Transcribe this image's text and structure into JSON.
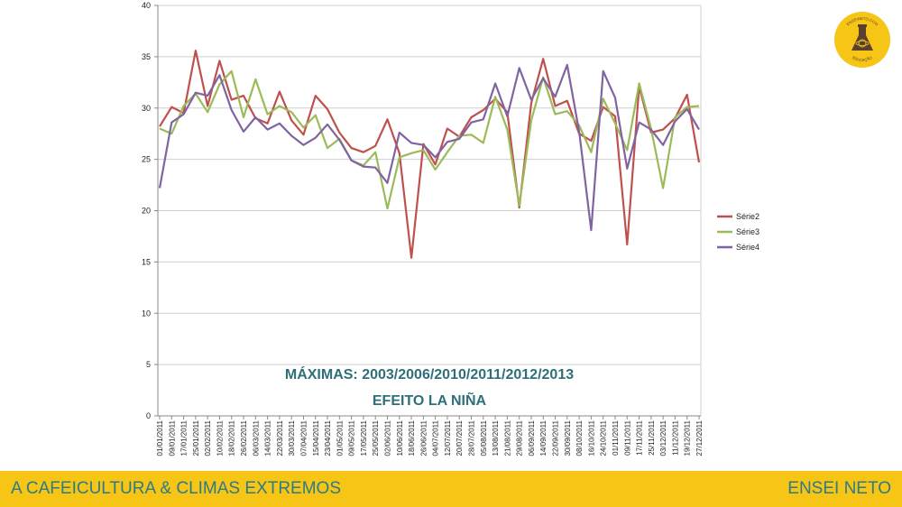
{
  "chart_data": {
    "type": "line",
    "title": "",
    "xlabel": "",
    "ylabel": "",
    "ylim": [
      0,
      40
    ],
    "yticks": [
      0,
      5,
      10,
      15,
      20,
      25,
      30,
      35,
      40
    ],
    "grid": true,
    "legend": "right",
    "x": [
      "01/01/2011",
      "09/01/2011",
      "17/01/2011",
      "25/01/2011",
      "02/02/2011",
      "10/02/2011",
      "18/02/2011",
      "26/02/2011",
      "06/03/2011",
      "14/03/2011",
      "22/03/2011",
      "30/03/2011",
      "07/04/2011",
      "15/04/2011",
      "23/04/2011",
      "01/05/2011",
      "09/05/2011",
      "17/05/2011",
      "25/05/2011",
      "02/06/2011",
      "10/06/2011",
      "18/06/2011",
      "26/06/2011",
      "04/07/2011",
      "12/07/2011",
      "20/07/2011",
      "28/07/2011",
      "05/08/2011",
      "13/08/2011",
      "21/08/2011",
      "29/08/2011",
      "06/09/2011",
      "14/09/2011",
      "22/09/2011",
      "30/09/2011",
      "08/10/2011",
      "16/10/2011",
      "24/10/2011",
      "01/11/2011",
      "09/11/2011",
      "17/11/2011",
      "25/11/2011",
      "03/12/2011",
      "11/12/2011",
      "19/12/2011",
      "27/12/2011"
    ],
    "series": [
      {
        "name": "Série2",
        "color": "#c0504d",
        "values": [
          28.2,
          30.1,
          29.5,
          35.6,
          30.2,
          34.6,
          30.8,
          31.2,
          29.0,
          28.5,
          31.6,
          28.8,
          27.4,
          31.2,
          29.9,
          27.6,
          26.1,
          25.7,
          26.3,
          28.9,
          25.6,
          15.4,
          26.5,
          24.5,
          28.0,
          27.2,
          29.1,
          29.8,
          30.9,
          29.6,
          20.3,
          30.5,
          34.8,
          30.2,
          30.7,
          27.5,
          26.8,
          30.1,
          29.2,
          16.7,
          32.1,
          27.6,
          27.9,
          29.0,
          31.3,
          24.7
        ]
      },
      {
        "name": "Série3",
        "color": "#9bbb59",
        "values": [
          28.0,
          27.5,
          30.2,
          31.4,
          29.6,
          32.3,
          33.6,
          29.1,
          32.8,
          29.4,
          30.2,
          29.6,
          28.1,
          29.3,
          26.1,
          27.0,
          24.9,
          24.4,
          25.7,
          20.2,
          25.2,
          25.6,
          25.9,
          24.0,
          25.7,
          27.3,
          27.4,
          26.6,
          31.1,
          27.9,
          20.5,
          28.8,
          33.0,
          29.4,
          29.7,
          28.3,
          25.7,
          30.9,
          28.5,
          25.9,
          32.4,
          28.0,
          22.2,
          29.1,
          30.1,
          30.2
        ]
      },
      {
        "name": "Série4",
        "color": "#8064a2",
        "values": [
          22.2,
          28.6,
          29.4,
          31.5,
          31.2,
          33.2,
          29.8,
          27.7,
          29.1,
          27.9,
          28.5,
          27.3,
          26.4,
          27.1,
          28.4,
          26.9,
          24.9,
          24.3,
          24.2,
          22.7,
          27.6,
          26.6,
          26.4,
          25.2,
          26.7,
          27.0,
          28.6,
          28.9,
          32.4,
          29.2,
          33.9,
          30.8,
          32.9,
          31.1,
          34.2,
          27.7,
          18.1,
          33.6,
          31.0,
          24.1,
          28.6,
          27.9,
          26.4,
          28.7,
          29.9,
          27.9
        ]
      }
    ]
  },
  "annotations": {
    "line1": "MÁXIMAS: 2003/2006/2010/2011/2012/2013",
    "line2": "EFEITO LA NIÑA"
  },
  "footer": {
    "left": "A CAFEICULTURA & CLIMAS EXTREMOS",
    "right": "ENSEI NETO"
  },
  "logo": {
    "text_top": "ENSEINETO.COM",
    "text_bottom": "EDUCAÇÃO",
    "color": "#f6c515"
  }
}
